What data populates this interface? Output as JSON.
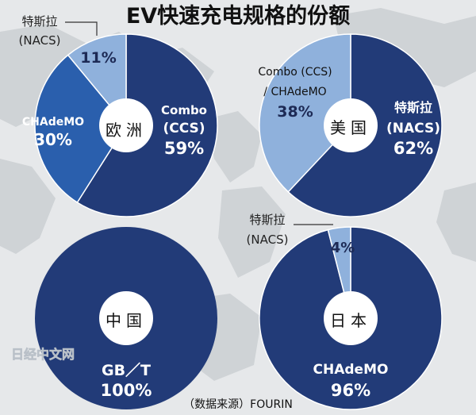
{
  "title": "EV快速充电规格的份额",
  "source": "（数据来源）FOURIN",
  "watermark": "日经中文网",
  "colors": {
    "ccs": "#223b78",
    "nacs_light": "#8fb1dc",
    "chademo_mid": "#2a5fad",
    "navy": "#223b78",
    "background_map": "#cfd3d6"
  },
  "chart_data": [
    {
      "type": "pie",
      "region": "欧洲",
      "slices": [
        {
          "key": "ccs",
          "label_lines": [
            "Combo",
            "(CCS)"
          ],
          "value": 59,
          "value_text": "59%"
        },
        {
          "key": "chademo",
          "label_lines": [
            "CHAdeMO"
          ],
          "value": 30,
          "value_text": "30%"
        },
        {
          "key": "nacs",
          "label_lines": [
            "特斯拉",
            "(NACS)"
          ],
          "value": 11,
          "value_text": "11%"
        }
      ]
    },
    {
      "type": "pie",
      "region": "美国",
      "slices": [
        {
          "key": "nacs",
          "label_lines": [
            "特斯拉",
            "(NACS)"
          ],
          "value": 62,
          "value_text": "62%"
        },
        {
          "key": "combo_chademo",
          "label_lines": [
            "Combo (CCS)",
            "/ CHAdeMO"
          ],
          "value": 38,
          "value_text": "38%"
        }
      ]
    },
    {
      "type": "pie",
      "region": "中国",
      "slices": [
        {
          "key": "gbt",
          "label_lines": [
            "GB／T"
          ],
          "value": 100,
          "value_text": "100%"
        }
      ]
    },
    {
      "type": "pie",
      "region": "日本",
      "slices": [
        {
          "key": "chademo",
          "label_lines": [
            "CHAdeMO"
          ],
          "value": 96,
          "value_text": "96%"
        },
        {
          "key": "nacs",
          "label_lines": [
            "特斯拉",
            "(NACS)"
          ],
          "value": 4,
          "value_text": "4%"
        }
      ]
    }
  ]
}
